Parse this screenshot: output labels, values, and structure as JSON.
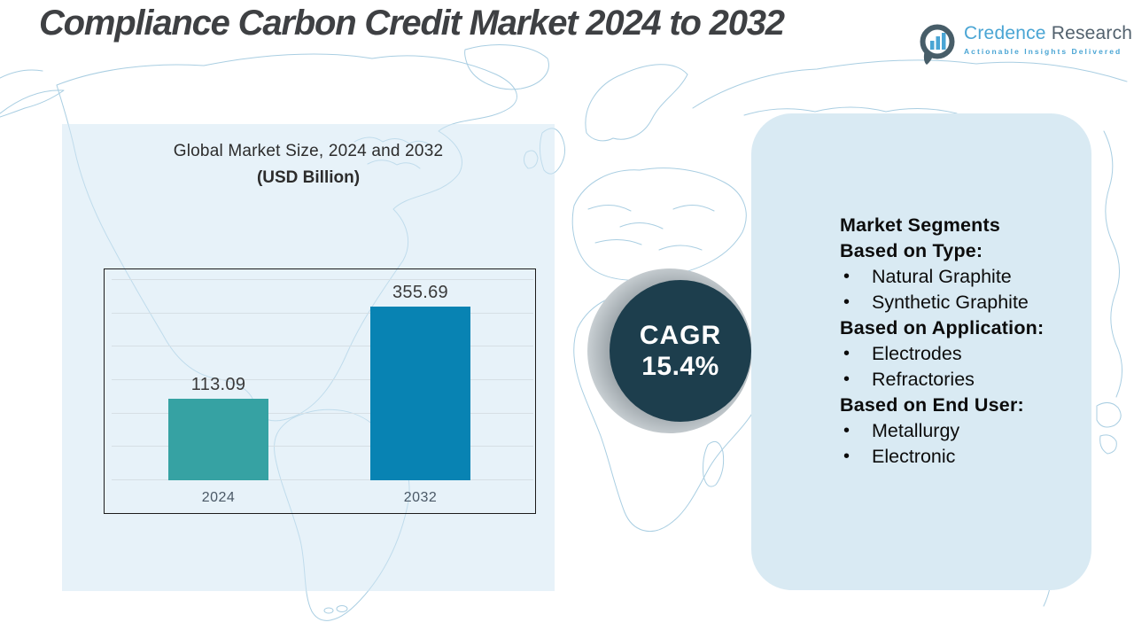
{
  "header": {
    "title": "Compliance Carbon Credit Market 2024 to 2032"
  },
  "logo": {
    "name_primary": "Credence",
    "name_secondary": "Research",
    "tagline": "Actionable Insights Delivered"
  },
  "chart_data": {
    "type": "bar",
    "title": "Global Market Size, 2024 and 2032",
    "subtitle": "(USD Billion)",
    "categories": [
      "2024",
      "2032"
    ],
    "values": [
      113.09,
      355.69
    ],
    "value_labels": [
      "113.09",
      "355.69"
    ],
    "series_colors": [
      "#36a2a3",
      "#0883b3"
    ],
    "ylim": [
      -100,
      425
    ],
    "grid": true,
    "legend": false,
    "ylabel": "",
    "xlabel": ""
  },
  "cagr_badge": {
    "label": "CAGR",
    "value": "15.4%",
    "circle_color": "#1d3e4d"
  },
  "segments_panel": {
    "lines": [
      {
        "text": "Market Segments",
        "style": "header"
      },
      {
        "text": "Based on Type:",
        "style": "header"
      },
      {
        "text": "Natural Graphite",
        "style": "bullet"
      },
      {
        "text": "Synthetic Graphite",
        "style": "bullet"
      },
      {
        "text": "Based on Application:",
        "style": "header"
      },
      {
        "text": "Electrodes",
        "style": "bullet"
      },
      {
        "text": "Refractories",
        "style": "bullet"
      },
      {
        "text": "Based on End User:",
        "style": "header"
      },
      {
        "text": "Metallurgy",
        "style": "bullet"
      },
      {
        "text": "Electronic",
        "style": "bullet"
      }
    ]
  },
  "colors": {
    "bar_2024": "#36a2a3",
    "bar_2032": "#0883b3",
    "cagr_circle": "#1d3e4d",
    "right_panel_bg": "#d9eaf3",
    "left_panel_bg": "#e9f2f8",
    "map_stroke": "#a9cee2",
    "accent_blue": "#4aa5d4",
    "brand_dark": "#53626e",
    "title_color": "#3e4043"
  }
}
